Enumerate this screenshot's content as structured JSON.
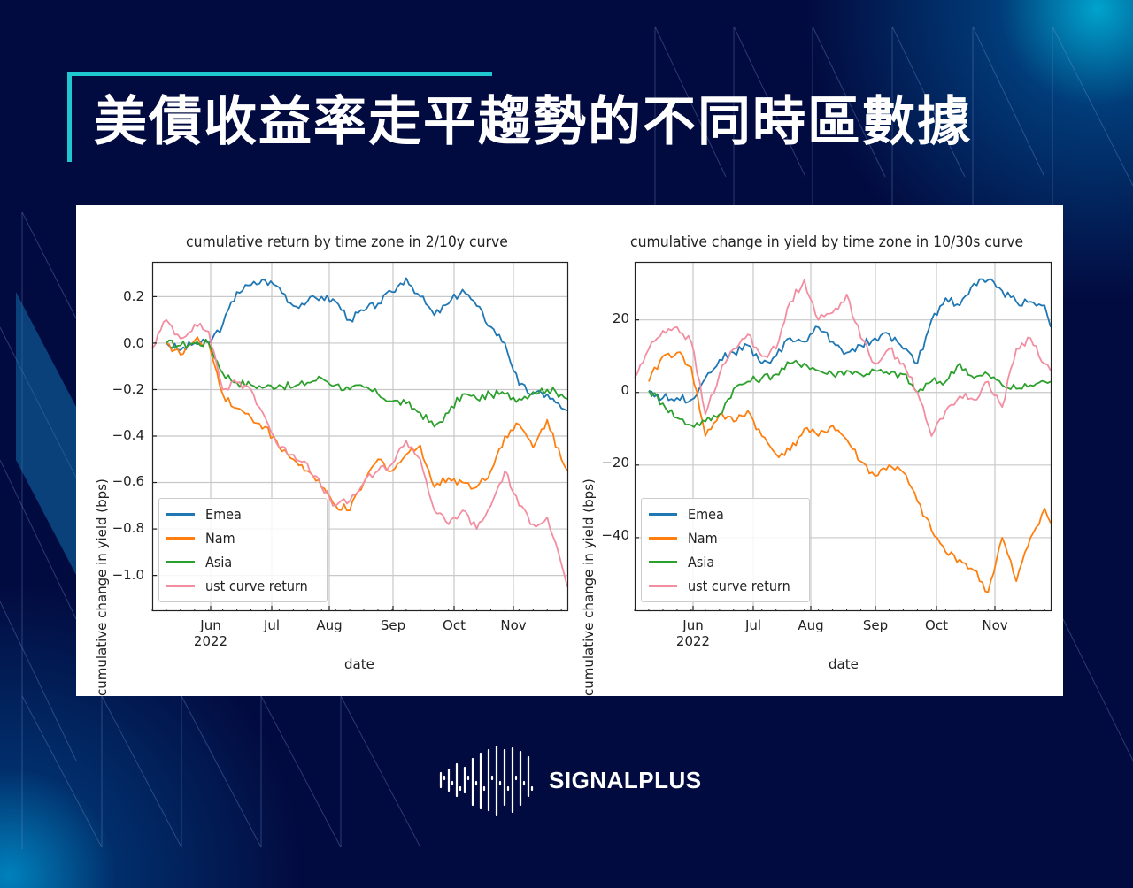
{
  "slide": {
    "title": "美債收益率走平趨勢的不同時區數據",
    "accent_color": "#1fc8d0",
    "background_color": "#020b40",
    "brand": "SIGNALPLUS"
  },
  "chart_data": [
    {
      "type": "line",
      "title": "cumulative return by time zone in 2/10y curve",
      "xlabel": "date",
      "ylabel": "cumulative change in yield (bps)",
      "x_ticks": [
        "Jun\n2022",
        "Jul",
        "Aug",
        "Sep",
        "Oct",
        "Nov"
      ],
      "y_ticks": [
        "0.2",
        "0.0",
        "−0.2",
        "−0.4",
        "−0.6",
        "−0.8",
        "−1.0"
      ],
      "ylim": [
        -1.15,
        0.35
      ],
      "xlim": [
        "2022-05-08",
        "2022-11-30"
      ],
      "grid": true,
      "legend_position": "lower left",
      "x": [
        "05-08",
        "05-15",
        "05-22",
        "05-29",
        "06-05",
        "06-12",
        "06-19",
        "06-26",
        "07-03",
        "07-10",
        "07-17",
        "07-24",
        "07-31",
        "08-07",
        "08-14",
        "08-21",
        "08-28",
        "09-04",
        "09-11",
        "09-18",
        "09-25",
        "10-02",
        "10-09",
        "10-16",
        "10-23",
        "10-30",
        "11-06",
        "11-13",
        "11-20",
        "11-27",
        "11-30"
      ],
      "series": [
        {
          "name": "Emea",
          "color": "#1f77b4",
          "values": [
            null,
            0.0,
            -0.03,
            0.0,
            0.0,
            0.08,
            0.22,
            0.25,
            0.27,
            0.24,
            0.16,
            0.18,
            0.2,
            0.18,
            0.1,
            0.14,
            0.17,
            0.22,
            0.28,
            0.2,
            0.12,
            0.17,
            0.23,
            0.16,
            0.07,
            0.0,
            -0.18,
            -0.22,
            -0.22,
            -0.28,
            -0.29
          ]
        },
        {
          "name": "Nam",
          "color": "#ff7f0e",
          "values": [
            null,
            0.0,
            -0.05,
            0.01,
            0.0,
            -0.22,
            -0.28,
            -0.32,
            -0.36,
            -0.45,
            -0.5,
            -0.55,
            -0.62,
            -0.7,
            -0.72,
            -0.6,
            -0.5,
            -0.55,
            -0.48,
            -0.44,
            -0.62,
            -0.58,
            -0.6,
            -0.62,
            -0.55,
            -0.4,
            -0.35,
            -0.45,
            -0.33,
            -0.5,
            -0.55
          ]
        },
        {
          "name": "Asia",
          "color": "#2ca02c",
          "values": [
            null,
            0.0,
            -0.01,
            0.0,
            0.0,
            -0.13,
            -0.17,
            -0.18,
            -0.19,
            -0.18,
            -0.19,
            -0.17,
            -0.15,
            -0.18,
            -0.2,
            -0.19,
            -0.22,
            -0.25,
            -0.26,
            -0.3,
            -0.36,
            -0.3,
            -0.22,
            -0.24,
            -0.22,
            -0.22,
            -0.24,
            -0.21,
            -0.2,
            -0.22,
            -0.24
          ]
        },
        {
          "name": "ust curve return",
          "color": "#f28ea0",
          "values": [
            -0.02,
            0.1,
            0.02,
            0.08,
            0.05,
            -0.2,
            -0.17,
            -0.2,
            -0.32,
            -0.45,
            -0.48,
            -0.52,
            -0.62,
            -0.7,
            -0.68,
            -0.6,
            -0.55,
            -0.52,
            -0.42,
            -0.5,
            -0.72,
            -0.78,
            -0.72,
            -0.8,
            -0.7,
            -0.55,
            -0.7,
            -0.78,
            -0.75,
            -0.95,
            -1.05
          ]
        }
      ]
    },
    {
      "type": "line",
      "title": "cumulative change in yield by time zone in 10/30s curve",
      "xlabel": "date",
      "ylabel": "cumulative change in yield (bps)",
      "x_ticks": [
        "Jun\n2022",
        "Jul",
        "Aug",
        "Sep",
        "Oct",
        "Nov"
      ],
      "y_ticks": [
        "20",
        "0",
        "−20",
        "−40"
      ],
      "ylim": [
        -60,
        36
      ],
      "xlim": [
        "2022-05-08",
        "2022-11-30"
      ],
      "grid": true,
      "legend_position": "lower left",
      "x": [
        "05-08",
        "05-15",
        "05-22",
        "05-29",
        "06-05",
        "06-12",
        "06-19",
        "06-26",
        "07-03",
        "07-10",
        "07-17",
        "07-24",
        "07-31",
        "08-07",
        "08-14",
        "08-21",
        "08-28",
        "09-04",
        "09-11",
        "09-18",
        "09-25",
        "10-02",
        "10-09",
        "10-16",
        "10-23",
        "10-30",
        "11-06",
        "11-13",
        "11-20",
        "11-27",
        "11-30"
      ],
      "series": [
        {
          "name": "Emea",
          "color": "#1f77b4",
          "values": [
            null,
            0.5,
            -1.5,
            -1.5,
            -2,
            4,
            9,
            11,
            13,
            8,
            10,
            15,
            14,
            18,
            14,
            11,
            13,
            15,
            16,
            12,
            8,
            20,
            26,
            24,
            30,
            31,
            28,
            25,
            25,
            24,
            18
          ]
        },
        {
          "name": "Nam",
          "color": "#ff7f0e",
          "values": [
            null,
            3,
            10,
            11,
            7,
            -12,
            -6,
            -8,
            -5,
            -12,
            -17,
            -16,
            -10,
            -12,
            -9,
            -13,
            -19,
            -23,
            -20,
            -22,
            -30,
            -38,
            -44,
            -46,
            -49,
            -55,
            -40,
            -52,
            -40,
            -32,
            -36
          ]
        },
        {
          "name": "Asia",
          "color": "#2ca02c",
          "values": [
            null,
            0.5,
            -3,
            -7,
            -9,
            -8,
            -6,
            1,
            3,
            4,
            5,
            8,
            8,
            6,
            5,
            6,
            5,
            6,
            5,
            5,
            0,
            3,
            3,
            8,
            4,
            5,
            2,
            1,
            2,
            3,
            3
          ]
        },
        {
          "name": "ust curve return",
          "color": "#f28ea0",
          "values": [
            4,
            12,
            17,
            18,
            14,
            -6,
            5,
            12,
            16,
            10,
            12,
            25,
            31,
            20,
            22,
            27,
            15,
            8,
            12,
            8,
            0,
            -12,
            -5,
            -1,
            -2,
            3,
            -4,
            12,
            15,
            8,
            6
          ]
        }
      ]
    }
  ],
  "charts_ui": [
    {
      "title": "cumulative return by time zone in 2/10y curve",
      "y_ticks": [
        "0.2",
        "0.0",
        "−0.2",
        "−0.4",
        "−0.6",
        "−0.8",
        "−1.0"
      ],
      "x_ticks": [
        "Jun",
        "Jul",
        "Aug",
        "Sep",
        "Oct",
        "Nov"
      ],
      "year_label": "2022",
      "xlabel": "date",
      "ylabel": "cumulative change in yield (bps)",
      "legend": [
        "Emea",
        "Nam",
        "Asia",
        "ust curve return"
      ]
    },
    {
      "title": "cumulative change in yield by time zone in 10/30s curve",
      "y_ticks": [
        "20",
        "0",
        "−20",
        "−40"
      ],
      "x_ticks": [
        "Jun",
        "Jul",
        "Aug",
        "Sep",
        "Oct",
        "Nov"
      ],
      "year_label": "2022",
      "xlabel": "date",
      "ylabel": "cumulative change in yield (bps)",
      "legend": [
        "Emea",
        "Nam",
        "Asia",
        "ust curve return"
      ]
    }
  ]
}
